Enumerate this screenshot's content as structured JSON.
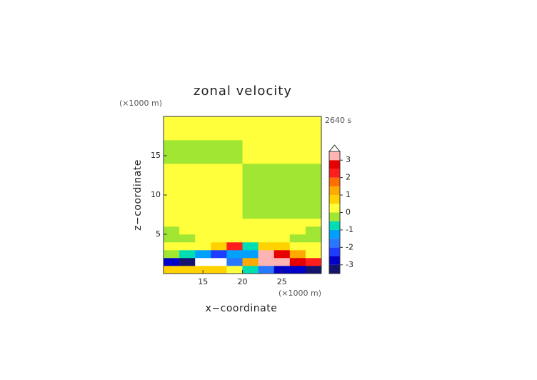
{
  "chart_data": {
    "type": "contour",
    "title": "zonal velocity",
    "x_label": "x−coordinate",
    "y_label": "z−coordinate",
    "x_unit": "(×1000 m)",
    "y_unit": "(×1000 m)",
    "time_label": "2640 s",
    "xlim": [
      10,
      30
    ],
    "ylim": [
      0,
      20
    ],
    "xticks": [
      15,
      20,
      25
    ],
    "yticks": [
      5,
      10,
      15
    ],
    "x": [
      11,
      13,
      15,
      17,
      19,
      21,
      23,
      25,
      27,
      29
    ],
    "y": [
      0.5,
      1.5,
      2.5,
      3.5,
      4.5,
      5.5,
      6.5,
      7.5,
      8.5,
      9.5,
      10.5,
      11.5,
      12.5,
      13.5,
      14.5,
      15.5,
      16.5,
      17.5,
      18.5,
      19.5
    ],
    "z": [
      [
        0.8,
        0.8,
        0.8,
        0.6,
        0.3,
        -0.8,
        -1.7,
        -2.7,
        -2.7,
        -3.2
      ],
      [
        -2.8,
        -3.2,
        4,
        4,
        -1.8,
        1.2,
        3.2,
        3.2,
        2.8,
        2.2
      ],
      [
        -0.2,
        -0.7,
        -1.2,
        -2.2,
        -1.5,
        -1.2,
        3.2,
        2.7,
        1.2,
        0.3
      ],
      [
        0.2,
        0.2,
        0.3,
        0.8,
        2.2,
        -0.8,
        0.8,
        0.8,
        0.3,
        0.2
      ],
      [
        -0.2,
        -0.2,
        0.2,
        0.2,
        0.3,
        0.3,
        0.2,
        0.2,
        -0.2,
        -0.2
      ],
      [
        -0.2,
        0.2,
        0.2,
        0.2,
        0.2,
        0.2,
        0.2,
        0.2,
        0.2,
        -0.2
      ],
      [
        0.2,
        0.2,
        0.2,
        0.2,
        0.2,
        0.2,
        0.2,
        0.2,
        0.2,
        0.2
      ],
      [
        0.2,
        0.2,
        0.2,
        0.2,
        0.2,
        -0.2,
        -0.2,
        -0.2,
        -0.2,
        -0.2
      ],
      [
        0.2,
        0.2,
        0.2,
        0.2,
        0.2,
        -0.2,
        -0.2,
        -0.2,
        -0.2,
        -0.2
      ],
      [
        0.2,
        0.2,
        0.2,
        0.2,
        0.2,
        -0.2,
        -0.2,
        -0.2,
        -0.2,
        -0.2
      ],
      [
        0.2,
        0.2,
        0.2,
        0.2,
        0.2,
        -0.2,
        -0.2,
        -0.2,
        -0.2,
        -0.2
      ],
      [
        0.2,
        0.2,
        0.2,
        0.2,
        0.2,
        -0.2,
        -0.2,
        -0.2,
        -0.2,
        -0.2
      ],
      [
        0.2,
        0.2,
        0.2,
        0.2,
        0.2,
        -0.2,
        -0.2,
        -0.2,
        -0.2,
        -0.2
      ],
      [
        0.2,
        0.2,
        0.2,
        0.2,
        0.2,
        -0.2,
        -0.2,
        -0.2,
        -0.2,
        -0.2
      ],
      [
        -0.2,
        -0.2,
        -0.2,
        -0.2,
        -0.2,
        0.2,
        0.2,
        0.2,
        0.2,
        0.2
      ],
      [
        -0.2,
        -0.2,
        -0.2,
        -0.2,
        -0.2,
        0.2,
        0.2,
        0.2,
        0.2,
        0.2
      ],
      [
        -0.2,
        -0.2,
        -0.2,
        -0.2,
        -0.2,
        0.2,
        0.2,
        0.2,
        0.2,
        0.2
      ],
      [
        0.2,
        0.2,
        0.2,
        0.2,
        0.2,
        0.2,
        0.2,
        0.2,
        0.2,
        0.2
      ],
      [
        0.2,
        0.2,
        0.2,
        0.2,
        0.2,
        0.2,
        0.2,
        0.2,
        0.2,
        0.2
      ],
      [
        0.2,
        0.2,
        0.2,
        0.2,
        0.2,
        0.2,
        0.2,
        0.2,
        0.2,
        0.2
      ]
    ],
    "colorbar": {
      "levels": [
        -3.5,
        -3,
        -2.5,
        -2,
        -1.5,
        -1,
        -0.5,
        0,
        0.5,
        1,
        1.5,
        2,
        2.5,
        3,
        3.5
      ],
      "colors": [
        "#14146e",
        "#0000c8",
        "#1e3cff",
        "#2878ff",
        "#00a0ff",
        "#00dcb4",
        "#a0e632",
        "#ffff3c",
        "#ffd200",
        "#ffaa00",
        "#ff6e00",
        "#ff1e1e",
        "#e60000",
        "#ffb4b4"
      ],
      "over_color": "#ffffff",
      "ticks": [
        -3,
        -2,
        -1,
        0,
        1,
        2,
        3
      ]
    }
  }
}
